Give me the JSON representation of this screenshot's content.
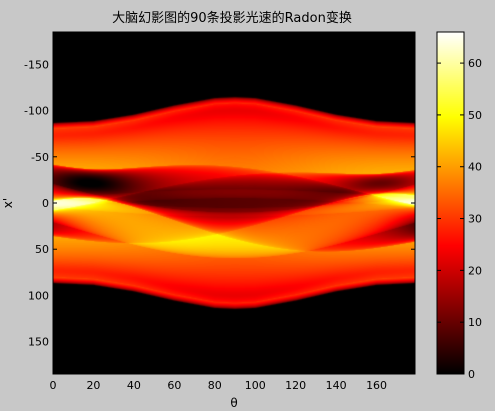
{
  "chart_data": {
    "type": "heatmap",
    "title": "大脑幻影图的90条投影光速的Radon变换",
    "xlabel": "θ",
    "ylabel": "x'",
    "xlim": [
      0,
      179
    ],
    "ylim": [
      -185,
      185
    ],
    "y_reversed": true,
    "x_ticks": [
      "0",
      "20",
      "40",
      "60",
      "80",
      "100",
      "120",
      "140",
      "160"
    ],
    "x_tick_values": [
      0,
      20,
      40,
      60,
      80,
      100,
      120,
      140,
      160
    ],
    "y_ticks": [
      "-150",
      "-100",
      "-50",
      "0",
      "50",
      "100",
      "150"
    ],
    "y_tick_values": [
      -150,
      -100,
      -50,
      0,
      50,
      100,
      150
    ],
    "colorbar": {
      "colormap": "hot",
      "clim": [
        0,
        66
      ],
      "ticks": [
        "0",
        "10",
        "20",
        "30",
        "40",
        "50",
        "60"
      ],
      "tick_values": [
        0,
        10,
        20,
        30,
        40,
        50,
        60
      ]
    },
    "support_halfwidth": {
      "theta": [
        0,
        20,
        40,
        60,
        80,
        90,
        100,
        120,
        140,
        160,
        179
      ],
      "x_prime": [
        87,
        89,
        96,
        106,
        114,
        115,
        114,
        106,
        96,
        89,
        87
      ]
    },
    "peak_value": 66,
    "min_value": 0,
    "grid": false
  },
  "colors": {
    "figure_background": "#c8c8c8",
    "axes_frame": "#000000"
  }
}
